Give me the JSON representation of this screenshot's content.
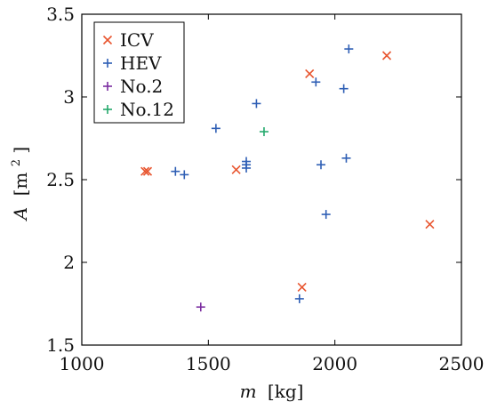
{
  "chart_data": {
    "type": "scatter",
    "xlabel": {
      "prefix": "m",
      "unit": "[kg]"
    },
    "ylabel": {
      "prefix": "A",
      "unit": "[m",
      "superscript": "2",
      "close": "]"
    },
    "xlim": [
      1000,
      2500
    ],
    "ylim": [
      1.5,
      3.5
    ],
    "xticks": [
      1000,
      1500,
      2000,
      2500
    ],
    "yticks": [
      1.5,
      2,
      2.5,
      3,
      3.5
    ],
    "xtick_labels": [
      "1000",
      "1500",
      "2000",
      "2500"
    ],
    "ytick_labels": [
      "1.5",
      "2",
      "2.5",
      "3",
      "3.5"
    ],
    "grid": false,
    "legend_position": "top-left",
    "series": [
      {
        "name": "ICV",
        "marker": "x",
        "color": "#e8552f",
        "points": [
          {
            "x": 1250,
            "y": 2.55
          },
          {
            "x": 1260,
            "y": 2.55
          },
          {
            "x": 1610,
            "y": 2.56
          },
          {
            "x": 1870,
            "y": 1.85
          },
          {
            "x": 1900,
            "y": 3.14
          },
          {
            "x": 2205,
            "y": 3.25
          },
          {
            "x": 2375,
            "y": 2.23
          }
        ]
      },
      {
        "name": "HEV",
        "marker": "+",
        "color": "#2f5fb5",
        "points": [
          {
            "x": 1370,
            "y": 2.55
          },
          {
            "x": 1405,
            "y": 2.53
          },
          {
            "x": 1530,
            "y": 2.81
          },
          {
            "x": 1650,
            "y": 2.57
          },
          {
            "x": 1650,
            "y": 2.59
          },
          {
            "x": 1650,
            "y": 2.61
          },
          {
            "x": 1690,
            "y": 2.96
          },
          {
            "x": 1860,
            "y": 1.78
          },
          {
            "x": 1925,
            "y": 3.09
          },
          {
            "x": 1945,
            "y": 2.59
          },
          {
            "x": 1965,
            "y": 2.29
          },
          {
            "x": 2035,
            "y": 3.05
          },
          {
            "x": 2045,
            "y": 2.63
          },
          {
            "x": 2055,
            "y": 3.29
          }
        ]
      },
      {
        "name": "No.2",
        "marker": "+",
        "color": "#7b2da0",
        "points": [
          {
            "x": 1470,
            "y": 1.73
          }
        ]
      },
      {
        "name": "No.12",
        "marker": "+",
        "color": "#24a96c",
        "points": [
          {
            "x": 1720,
            "y": 2.79
          }
        ]
      }
    ]
  }
}
